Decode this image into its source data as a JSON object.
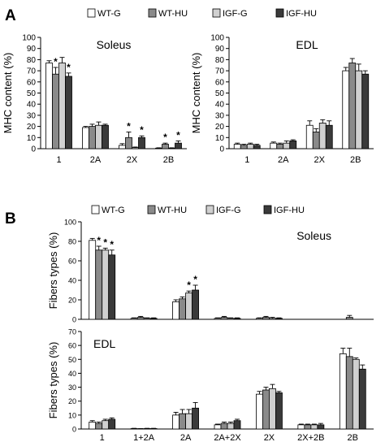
{
  "figure": {
    "panels": [
      {
        "letter": "A"
      },
      {
        "letter": "B"
      }
    ]
  },
  "legend": {
    "entries": [
      "WT-G",
      "WT-HU",
      "IGF-G",
      "IGF-HU"
    ]
  },
  "colors": {
    "WT-G": "#ffffff",
    "WT-HU": "#8a8a8a",
    "IGF-G": "#d0d0d0",
    "IGF-HU": "#3a3a3a"
  },
  "chart_data": [
    {
      "panel": "A",
      "type": "bar",
      "title": "Soleus",
      "ylabel": "MHC content (%)",
      "ylim": [
        0,
        100
      ],
      "yticks": [
        0,
        10,
        20,
        30,
        40,
        50,
        60,
        70,
        80,
        90,
        100
      ],
      "categories": [
        "1",
        "2A",
        "2X",
        "2B"
      ],
      "series": [
        {
          "name": "WT-G",
          "values": [
            77,
            19,
            3,
            0.5
          ],
          "errors": [
            2,
            1,
            1.5,
            0.3
          ]
        },
        {
          "name": "WT-HU",
          "values": [
            67,
            20,
            10,
            4
          ],
          "errors": [
            6,
            2,
            5,
            1
          ]
        },
        {
          "name": "IGF-G",
          "values": [
            77,
            21,
            1,
            0.5
          ],
          "errors": [
            5,
            3,
            0.5,
            0.3
          ]
        },
        {
          "name": "IGF-HU",
          "values": [
            65,
            21,
            10,
            5
          ],
          "errors": [
            3,
            1,
            1.5,
            2
          ]
        }
      ],
      "significance": [
        {
          "category": 0,
          "series": 1,
          "label": "*"
        },
        {
          "category": 0,
          "series": 3,
          "label": "*"
        },
        {
          "category": 2,
          "series": 1,
          "label": "*"
        },
        {
          "category": 2,
          "series": 3,
          "label": "*"
        },
        {
          "category": 3,
          "series": 1,
          "label": "*"
        },
        {
          "category": 3,
          "series": 3,
          "label": "*"
        }
      ]
    },
    {
      "panel": "A",
      "type": "bar",
      "title": "EDL",
      "ylabel": "MHC content (%)",
      "ylim": [
        0,
        100
      ],
      "yticks": [
        0,
        10,
        20,
        30,
        40,
        50,
        60,
        70,
        80,
        90,
        100
      ],
      "categories": [
        "1",
        "2A",
        "2X",
        "2B"
      ],
      "series": [
        {
          "name": "WT-G",
          "values": [
            4,
            5,
            21,
            70
          ],
          "errors": [
            1,
            1,
            4,
            3
          ]
        },
        {
          "name": "WT-HU",
          "values": [
            3,
            4,
            15,
            77
          ],
          "errors": [
            1,
            1,
            3,
            4
          ]
        },
        {
          "name": "IGF-G",
          "values": [
            4,
            5,
            23,
            70
          ],
          "errors": [
            1,
            2,
            3,
            6
          ]
        },
        {
          "name": "IGF-HU",
          "values": [
            3,
            7,
            21,
            67
          ],
          "errors": [
            1,
            1,
            4,
            3
          ]
        }
      ],
      "significance": []
    },
    {
      "panel": "B",
      "type": "bar",
      "title": "Soleus",
      "ylabel": "Fibers types (%)",
      "ylim": [
        0,
        100
      ],
      "yticks": [
        0,
        20,
        40,
        60,
        80,
        100
      ],
      "categories": [
        "1",
        "1+2A",
        "2A",
        "2A+2X",
        "2X",
        "2X+2B",
        "2B"
      ],
      "series": [
        {
          "name": "WT-G",
          "values": [
            81,
            1,
            18,
            1,
            1,
            0,
            0
          ],
          "errors": [
            2,
            0.5,
            2,
            0.5,
            0.5,
            0,
            0
          ]
        },
        {
          "name": "WT-HU",
          "values": [
            71,
            2,
            21,
            2,
            2,
            0,
            2
          ],
          "errors": [
            4,
            1,
            2,
            1,
            1,
            0,
            2
          ]
        },
        {
          "name": "IGF-G",
          "values": [
            71,
            1,
            27,
            1,
            1,
            0,
            0
          ],
          "errors": [
            2,
            0.5,
            2,
            0.5,
            1,
            0,
            0
          ]
        },
        {
          "name": "IGF-HU",
          "values": [
            66,
            1,
            30,
            1,
            1,
            0,
            0
          ],
          "errors": [
            5,
            0.5,
            5,
            0.5,
            0.5,
            0,
            0
          ]
        }
      ],
      "significance": [
        {
          "category": 0,
          "series": 1,
          "label": "*"
        },
        {
          "category": 0,
          "series": 2,
          "label": "*"
        },
        {
          "category": 0,
          "series": 3,
          "label": "*"
        },
        {
          "category": 2,
          "series": 2,
          "label": "*"
        },
        {
          "category": 2,
          "series": 3,
          "label": "*"
        }
      ]
    },
    {
      "panel": "B",
      "type": "bar",
      "title": "EDL",
      "ylabel": "Fibers types (%)",
      "ylim": [
        0,
        70
      ],
      "yticks": [
        0,
        10,
        20,
        30,
        40,
        50,
        60,
        70
      ],
      "categories": [
        "1",
        "1+2A",
        "2A",
        "2A+2X",
        "2X",
        "2X+2B",
        "2B"
      ],
      "series": [
        {
          "name": "WT-G",
          "values": [
            5,
            0.3,
            10,
            3,
            25,
            3,
            54
          ],
          "errors": [
            1,
            0.2,
            2,
            0.5,
            2,
            0.5,
            4
          ]
        },
        {
          "name": "WT-HU",
          "values": [
            4,
            0.2,
            11,
            4,
            28,
            3,
            52
          ],
          "errors": [
            1,
            0.1,
            3,
            1,
            2,
            0.5,
            6
          ]
        },
        {
          "name": "IGF-G",
          "values": [
            6,
            0.3,
            11,
            4,
            29,
            3,
            50
          ],
          "errors": [
            1,
            0.2,
            3,
            1,
            3,
            0.5,
            1
          ]
        },
        {
          "name": "IGF-HU",
          "values": [
            7,
            0.3,
            15,
            6,
            26,
            3,
            43
          ],
          "errors": [
            1,
            0.2,
            4,
            1,
            1,
            1,
            3
          ]
        }
      ],
      "significance": []
    }
  ]
}
